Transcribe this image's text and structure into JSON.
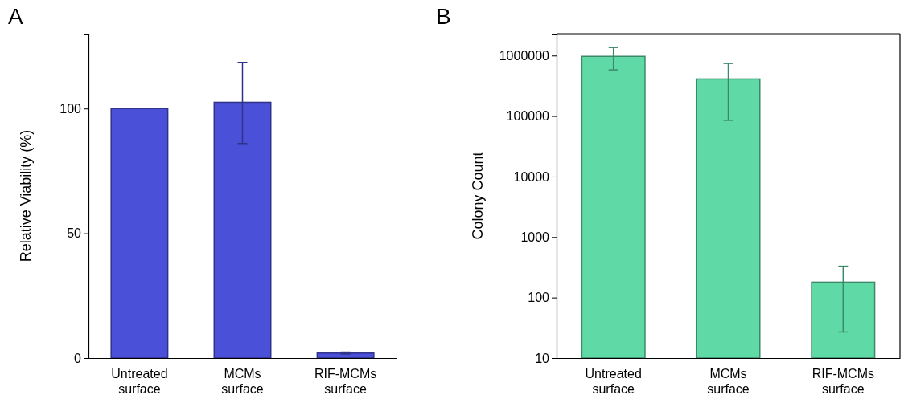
{
  "chart_data": [
    {
      "type": "bar",
      "ylabel": "Relative Viability (%)",
      "annotations": [
        "A"
      ],
      "categories": [
        "Untreated surface",
        "MCMs surface",
        "RIF-MCMs surface"
      ],
      "series": [
        {
          "color": "#4b50d8",
          "values": [
            100,
            102.5,
            2
          ],
          "errors": [
            null,
            [
              86,
              118.5
            ],
            [
              1.6,
              2.4
            ]
          ]
        }
      ],
      "ylim": [
        0,
        130
      ],
      "yticks": [
        0,
        50,
        100
      ]
    },
    {
      "type": "bar",
      "ylabel": "Colony Count",
      "annotations": [
        "B"
      ],
      "categories": [
        "Untreated surface",
        "MCMs surface",
        "RIF-MCMs surface"
      ],
      "series": [
        {
          "color": "#5fdaa7",
          "values": [
            970000,
            410000,
            180
          ],
          "errors": [
            [
              580000,
              1360000
            ],
            [
              85000,
              740000
            ],
            [
              27,
              330
            ]
          ]
        }
      ],
      "log": true,
      "ylim": [
        10,
        2300000
      ],
      "yticks": [
        10,
        100,
        1000,
        10000,
        100000,
        1000000
      ]
    }
  ]
}
